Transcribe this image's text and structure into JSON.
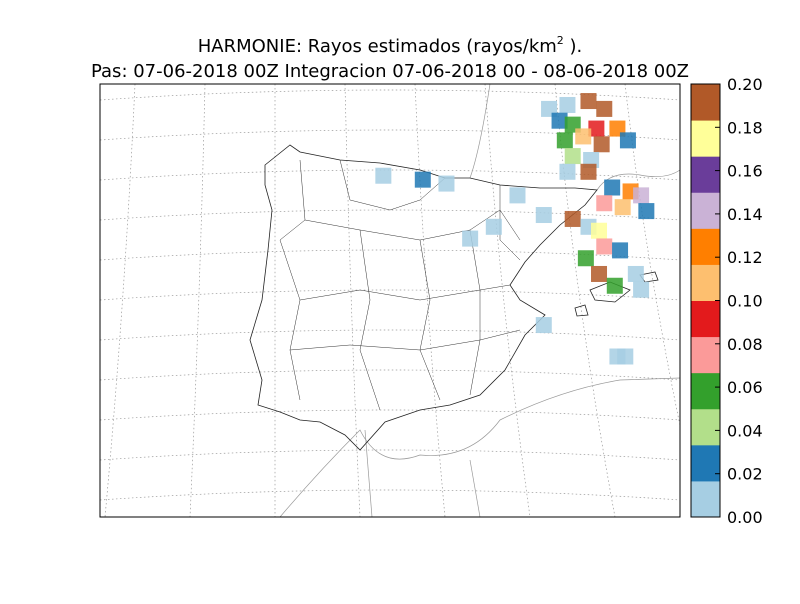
{
  "map": {
    "title": {
      "text": "HARMONIE: Rayos estimados  (rayos/km",
      "superscript": "2",
      "suffix": " )."
    },
    "subtitle": "Pas: 07-06-2018 00Z Integracion 07-06-2018 00 - 08-06-2018 00Z",
    "colorbar": {
      "lim": [
        0,
        0.2
      ],
      "ticks": [
        {
          "value": 0,
          "label": "0.00"
        },
        {
          "value": 0.02,
          "label": "0.02"
        },
        {
          "value": 0.04,
          "label": "0.04"
        },
        {
          "value": 0.06,
          "label": "0.06"
        },
        {
          "value": 0.08,
          "label": "0.08"
        },
        {
          "value": 0.1,
          "label": "0.10"
        },
        {
          "value": 0.12,
          "label": "0.12"
        },
        {
          "value": 0.14,
          "label": "0.14"
        },
        {
          "value": 0.16,
          "label": "0.16"
        },
        {
          "value": 0.18,
          "label": "0.18"
        },
        {
          "value": 0.2,
          "label": "0.20"
        }
      ],
      "colors": [
        "#a6cee3",
        "#1f78b4",
        "#b2df8a",
        "#33a02c",
        "#fb9a99",
        "#e31a1c",
        "#fdbf6f",
        "#ff7f00",
        "#cab2d6",
        "#6a3d9a",
        "#ffff99",
        "#b15928"
      ]
    },
    "cells": [
      {
        "lon": 1.5,
        "lat": 44.8,
        "value": 0.005
      },
      {
        "lon": 2.2,
        "lat": 44.9,
        "value": 0.01
      },
      {
        "lon": 3.0,
        "lat": 45.0,
        "value": 0.19
      },
      {
        "lon": 3.6,
        "lat": 44.8,
        "value": 0.2
      },
      {
        "lon": 1.9,
        "lat": 44.5,
        "value": 0.02
      },
      {
        "lon": 2.4,
        "lat": 44.4,
        "value": 0.05
      },
      {
        "lon": 3.3,
        "lat": 44.3,
        "value": 0.09
      },
      {
        "lon": 4.1,
        "lat": 44.3,
        "value": 0.12
      },
      {
        "lon": 2.1,
        "lat": 44.0,
        "value": 0.06
      },
      {
        "lon": 2.8,
        "lat": 44.1,
        "value": 0.11
      },
      {
        "lon": 3.5,
        "lat": 43.9,
        "value": 0.2
      },
      {
        "lon": 4.5,
        "lat": 44.0,
        "value": 0.03
      },
      {
        "lon": 2.4,
        "lat": 43.6,
        "value": 0.04
      },
      {
        "lon": 3.1,
        "lat": 43.5,
        "value": 0.01
      },
      {
        "lon": 3.0,
        "lat": 43.2,
        "value": 0.2
      },
      {
        "lon": 2.2,
        "lat": 43.2,
        "value": 0.005
      },
      {
        "lon": -4.8,
        "lat": 43.1,
        "value": 0.01
      },
      {
        "lon": -3.3,
        "lat": 43.0,
        "value": 0.02
      },
      {
        "lon": -2.4,
        "lat": 42.9,
        "value": 0.01
      },
      {
        "lon": 0.3,
        "lat": 42.6,
        "value": 0.005
      },
      {
        "lon": 3.9,
        "lat": 42.8,
        "value": 0.03
      },
      {
        "lon": 4.6,
        "lat": 42.7,
        "value": 0.12
      },
      {
        "lon": 5.0,
        "lat": 42.6,
        "value": 0.14
      },
      {
        "lon": 3.6,
        "lat": 42.4,
        "value": 0.08
      },
      {
        "lon": 4.3,
        "lat": 42.3,
        "value": 0.1
      },
      {
        "lon": 5.2,
        "lat": 42.2,
        "value": 0.02
      },
      {
        "lon": 2.4,
        "lat": 42.0,
        "value": 0.2
      },
      {
        "lon": 1.3,
        "lat": 42.1,
        "value": 0.01
      },
      {
        "lon": 3.0,
        "lat": 41.8,
        "value": 0.005
      },
      {
        "lon": 3.4,
        "lat": 41.7,
        "value": 0.18
      },
      {
        "lon": 3.6,
        "lat": 41.3,
        "value": 0.07
      },
      {
        "lon": 4.2,
        "lat": 41.2,
        "value": 0.02
      },
      {
        "lon": -0.6,
        "lat": 41.8,
        "value": 0.005
      },
      {
        "lon": -1.5,
        "lat": 41.5,
        "value": 0.005
      },
      {
        "lon": 2.9,
        "lat": 41.0,
        "value": 0.06
      },
      {
        "lon": 3.4,
        "lat": 40.6,
        "value": 0.2
      },
      {
        "lon": 4.0,
        "lat": 40.3,
        "value": 0.05
      },
      {
        "lon": 4.8,
        "lat": 40.6,
        "value": 0.01
      },
      {
        "lon": 5.0,
        "lat": 40.2,
        "value": 0.005
      },
      {
        "lon": 1.3,
        "lat": 39.3,
        "value": 0.005
      },
      {
        "lon": 4.1,
        "lat": 38.5,
        "value": 0.005
      },
      {
        "lon": 4.4,
        "lat": 38.5,
        "value": 0.005
      }
    ]
  }
}
